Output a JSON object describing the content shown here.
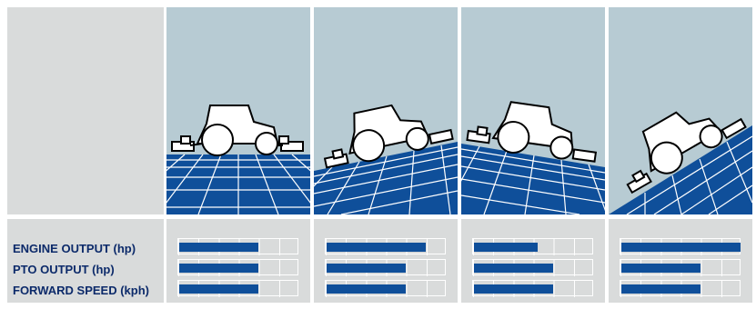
{
  "rows": {
    "engine_output": "ENGINE OUTPUT (hp)",
    "pto_output": "PTO OUTPUT (hp)",
    "forward_speed": "FORWARD SPEED (kph)"
  },
  "colors": {
    "bar": "#0f4f9a",
    "label": "#0c2a6a",
    "panel_bg": "#d9dbdb",
    "sky": "#b7cbd3",
    "ground": "#0f4f9a"
  },
  "icons": [
    "tractor-flat-icon",
    "tractor-uphill-right-icon",
    "tractor-uphill-left-icon",
    "tractor-steep-icon"
  ],
  "chart_data": {
    "type": "bar",
    "categories": [
      "ENGINE OUTPUT (hp)",
      "PTO OUTPUT (hp)",
      "FORWARD SPEED (kph)"
    ],
    "scale_max": 6,
    "series": [
      {
        "values": [
          4,
          4,
          4
        ]
      },
      {
        "values": [
          5,
          4,
          4
        ]
      },
      {
        "values": [
          3.2,
          4,
          4
        ]
      },
      {
        "values": [
          6,
          4,
          4
        ]
      }
    ],
    "xlabel": "",
    "ylabel": ""
  }
}
